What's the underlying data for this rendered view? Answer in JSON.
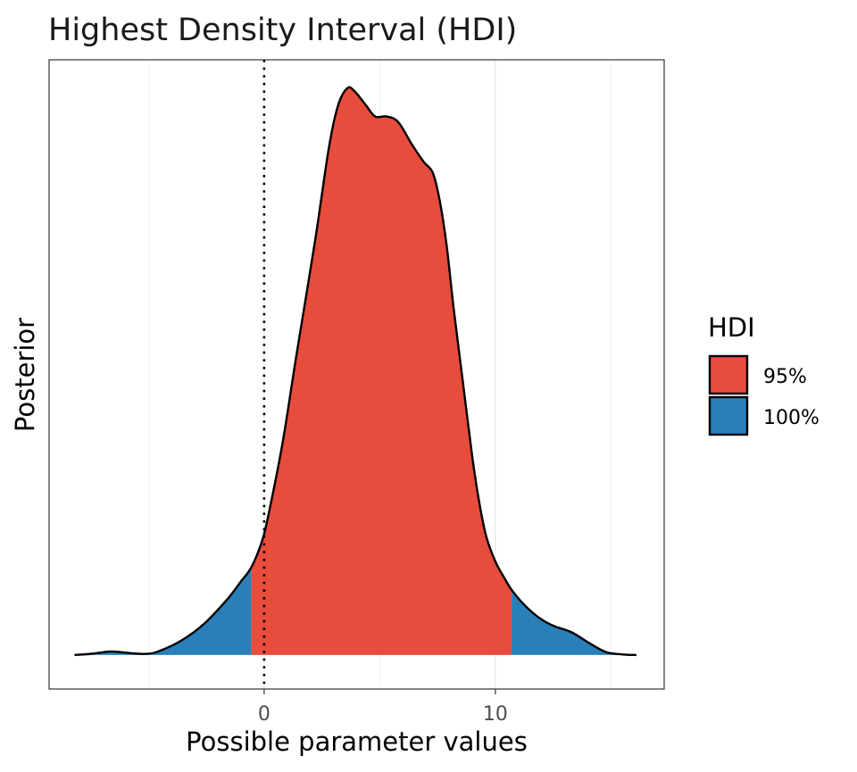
{
  "chart_data": {
    "type": "area",
    "title": "Highest Density Interval (HDI)",
    "xlabel": "Possible parameter values",
    "ylabel": "Posterior",
    "xlim": [
      -9.3,
      17.3
    ],
    "ylim": [
      -0.06,
      1.05
    ],
    "x_ticks": [
      0,
      10
    ],
    "x_tick_labels": [
      "0",
      "10"
    ],
    "major_grid_x": [
      0,
      10
    ],
    "minor_grid_x": [
      -5,
      5,
      15
    ],
    "grid": true,
    "reference_line": {
      "x": 0,
      "style": "dotted"
    },
    "hdi_95": {
      "low": -0.55,
      "high": 10.7
    },
    "density": {
      "x": [
        -8.2,
        -7.5,
        -6.7,
        -6.2,
        -5.7,
        -5.1,
        -4.6,
        -3.6,
        -2.6,
        -1.6,
        -1.0,
        -0.55,
        -0.1,
        0.2,
        0.8,
        1.4,
        2.2,
        2.8,
        3.2,
        3.6,
        3.9,
        4.4,
        4.8,
        5.3,
        5.8,
        6.4,
        6.9,
        7.3,
        7.6,
        7.9,
        8.2,
        8.6,
        9.0,
        9.3,
        9.6,
        10.0,
        10.4,
        10.7,
        11.1,
        11.6,
        12.1,
        12.6,
        13.3,
        14.1,
        14.8,
        15.5,
        16.1
      ],
      "y": [
        0.0,
        0.002,
        0.006,
        0.005,
        0.003,
        0.002,
        0.006,
        0.025,
        0.055,
        0.098,
        0.13,
        0.155,
        0.2,
        0.25,
        0.375,
        0.53,
        0.73,
        0.895,
        0.97,
        1.0,
        0.995,
        0.97,
        0.95,
        0.95,
        0.94,
        0.9,
        0.87,
        0.85,
        0.8,
        0.72,
        0.61,
        0.48,
        0.35,
        0.27,
        0.21,
        0.165,
        0.135,
        0.115,
        0.095,
        0.075,
        0.06,
        0.05,
        0.04,
        0.02,
        0.005,
        0.001,
        0.0
      ]
    }
  },
  "legend": {
    "title": "HDI",
    "position": "right",
    "items": [
      {
        "label": "95%",
        "color": "#E74C3C"
      },
      {
        "label": "100%",
        "color": "#2980B9"
      }
    ]
  }
}
